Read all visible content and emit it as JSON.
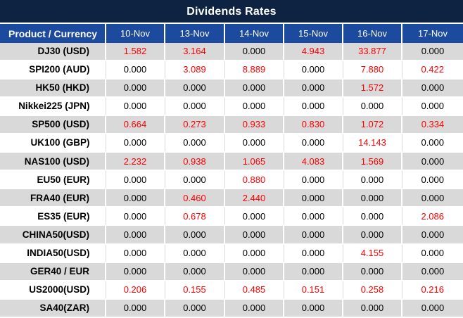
{
  "title": "Dividends Rates",
  "table": {
    "header": [
      "Product / Currency",
      "10-Nov",
      "13-Nov",
      "14-Nov",
      "15-Nov",
      "16-Nov",
      "17-Nov"
    ],
    "rows": [
      {
        "product": "DJ30 (USD)",
        "values": [
          "1.582",
          "3.164",
          "0.000",
          "4.943",
          "33.877",
          "0.000"
        ]
      },
      {
        "product": "SPI200 (AUD)",
        "values": [
          "0.000",
          "3.089",
          "8.889",
          "0.000",
          "7.880",
          "0.422"
        ]
      },
      {
        "product": "HK50 (HKD)",
        "values": [
          "0.000",
          "0.000",
          "0.000",
          "0.000",
          "1.572",
          "0.000"
        ]
      },
      {
        "product": "Nikkei225 (JPN)",
        "values": [
          "0.000",
          "0.000",
          "0.000",
          "0.000",
          "0.000",
          "0.000"
        ]
      },
      {
        "product": "SP500 (USD)",
        "values": [
          "0.664",
          "0.273",
          "0.933",
          "0.830",
          "1.072",
          "0.334"
        ]
      },
      {
        "product": "UK100 (GBP)",
        "values": [
          "0.000",
          "0.000",
          "0.000",
          "0.000",
          "14.143",
          "0.000"
        ]
      },
      {
        "product": "NAS100 (USD)",
        "values": [
          "2.232",
          "0.938",
          "1.065",
          "4.083",
          "1.569",
          "0.000"
        ]
      },
      {
        "product": "EU50 (EUR)",
        "values": [
          "0.000",
          "0.000",
          "0.880",
          "0.000",
          "0.000",
          "0.000"
        ]
      },
      {
        "product": "FRA40 (EUR)",
        "values": [
          "0.000",
          "0.460",
          "2.440",
          "0.000",
          "0.000",
          "0.000"
        ]
      },
      {
        "product": "ES35 (EUR)",
        "values": [
          "0.000",
          "0.678",
          "0.000",
          "0.000",
          "0.000",
          "2.086"
        ]
      },
      {
        "product": "CHINA50(USD)",
        "values": [
          "0.000",
          "0.000",
          "0.000",
          "0.000",
          "0.000",
          "0.000"
        ]
      },
      {
        "product": "INDIA50(USD)",
        "values": [
          "0.000",
          "0.000",
          "0.000",
          "0.000",
          "4.155",
          "0.000"
        ]
      },
      {
        "product": "GER40 / EUR",
        "values": [
          "0.000",
          "0.000",
          "0.000",
          "0.000",
          "0.000",
          "0.000"
        ]
      },
      {
        "product": "US2000(USD)",
        "values": [
          "0.206",
          "0.155",
          "0.485",
          "0.151",
          "0.258",
          "0.216"
        ]
      },
      {
        "product": "SA40(ZAR)",
        "values": [
          "0.000",
          "0.000",
          "0.000",
          "0.000",
          "0.000",
          "0.000"
        ]
      }
    ]
  },
  "colors": {
    "title_bg": "#0d2341",
    "header_bg": "#1b4a9e",
    "header_text": "#ffffff",
    "row_alt_bg": "#d9d9d9",
    "value_nonzero": "#ff0000",
    "value_zero": "#000000",
    "grid_white": "#ffffff",
    "grid_light": "#d9d9d9"
  }
}
